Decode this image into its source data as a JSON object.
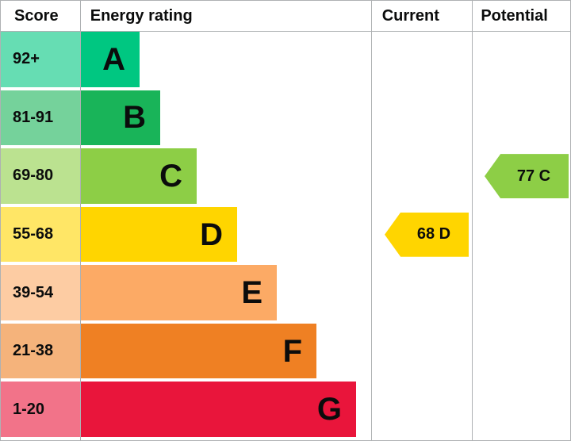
{
  "header": {
    "score": "Score",
    "energy_rating": "Energy rating",
    "current": "Current",
    "potential": "Potential"
  },
  "bands": [
    {
      "score": "92+",
      "letter": "A",
      "bar_color": "#00c781",
      "score_color": "#66ddb3"
    },
    {
      "score": "81-91",
      "letter": "B",
      "bar_color": "#19b459",
      "score_color": "#75d29b"
    },
    {
      "score": "69-80",
      "letter": "C",
      "bar_color": "#8dce46",
      "score_color": "#bbe290"
    },
    {
      "score": "55-68",
      "letter": "D",
      "bar_color": "#ffd500",
      "score_color": "#ffe666"
    },
    {
      "score": "39-54",
      "letter": "E",
      "bar_color": "#fcaa65",
      "score_color": "#fdcca3"
    },
    {
      "score": "21-38",
      "letter": "F",
      "bar_color": "#ef8023",
      "score_color": "#f5b37b"
    },
    {
      "score": "1-20",
      "letter": "G",
      "bar_color": "#e9153b",
      "score_color": "#f27389"
    }
  ],
  "markers": {
    "current": {
      "label": "68 D",
      "value": 68,
      "band": "D",
      "color": "#ffd500"
    },
    "potential": {
      "label": "77 C",
      "value": 77,
      "band": "C",
      "color": "#8dce46"
    }
  },
  "chart_data": {
    "type": "bar",
    "title": "Energy rating",
    "categories": [
      "A",
      "B",
      "C",
      "D",
      "E",
      "F",
      "G"
    ],
    "score_ranges": [
      "92+",
      "81-91",
      "69-80",
      "55-68",
      "39-54",
      "21-38",
      "1-20"
    ],
    "bar_lengths_relative": [
      0.2,
      0.28,
      0.4,
      0.54,
      0.68,
      0.81,
      0.95
    ],
    "colors": [
      "#00c781",
      "#19b459",
      "#8dce46",
      "#ffd500",
      "#fcaa65",
      "#ef8023",
      "#e9153b"
    ],
    "current": {
      "score": 68,
      "band": "D"
    },
    "potential": {
      "score": 77,
      "band": "C"
    },
    "columns": [
      "Score",
      "Energy rating",
      "Current",
      "Potential"
    ],
    "legend_position": "none",
    "grid": false
  }
}
